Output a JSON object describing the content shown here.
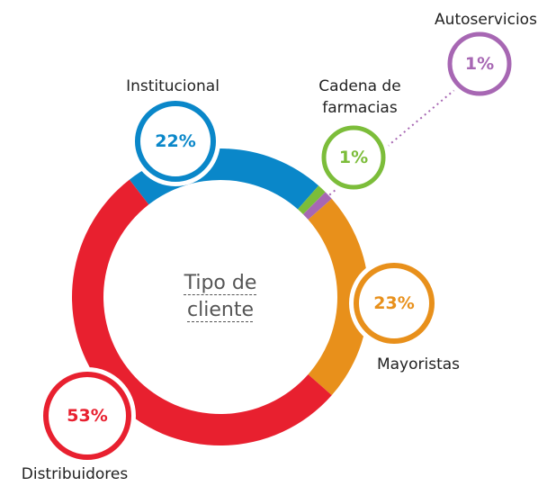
{
  "chart_data": {
    "type": "donut",
    "title": "Tipo de cliente",
    "categories": [
      "Institucional",
      "Cadena de farmacias",
      "Autoservicios",
      "Mayoristas",
      "Distribuidores"
    ],
    "values": [
      22,
      1,
      1,
      23,
      53
    ],
    "value_labels": [
      "22%",
      "1%",
      "1%",
      "23%",
      "53%"
    ],
    "colors": [
      "#0a87c9",
      "#7cbd3a",
      "#a767b3",
      "#e8901b",
      "#e8202f"
    ]
  }
}
